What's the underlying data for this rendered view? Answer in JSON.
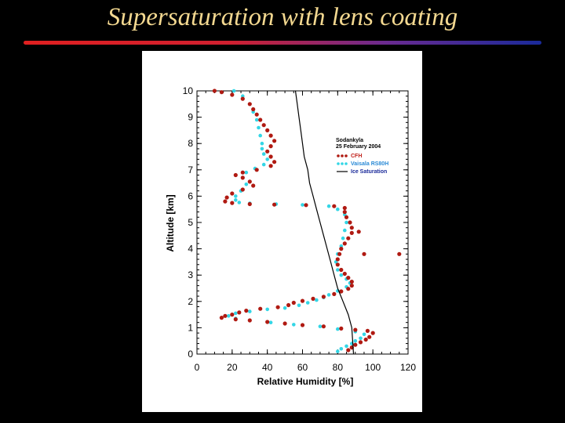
{
  "slide": {
    "title": "Supersaturation with lens coating",
    "accent_colors": [
      "#e02020",
      "#1a2a9a"
    ]
  },
  "chart_data": {
    "type": "scatter",
    "xlabel": "Relative Humidity [%]",
    "ylabel": "Altitude [km]",
    "xlim": [
      0,
      120
    ],
    "ylim": [
      0,
      10
    ],
    "xticks": [
      0,
      20,
      40,
      60,
      80,
      100,
      120
    ],
    "yticks": [
      0,
      1,
      2,
      3,
      4,
      5,
      6,
      7,
      8,
      9,
      10
    ],
    "annotation": {
      "line1": "Sodankyla",
      "line2": "25 February 2004"
    },
    "legend_position": "right-middle",
    "series": [
      {
        "name": "Vaisala RS80H",
        "color": "#33d6e6",
        "points": [
          [
            80,
            0.1
          ],
          [
            82,
            0.2
          ],
          [
            85,
            0.3
          ],
          [
            88,
            0.4
          ],
          [
            90,
            0.5
          ],
          [
            93,
            0.6
          ],
          [
            95,
            0.75
          ],
          [
            90,
            0.85
          ],
          [
            80,
            0.95
          ],
          [
            70,
            1.05
          ],
          [
            55,
            1.12
          ],
          [
            42,
            1.2
          ],
          [
            30,
            1.28
          ],
          [
            22,
            1.35
          ],
          [
            18,
            1.45
          ],
          [
            22,
            1.55
          ],
          [
            30,
            1.62
          ],
          [
            40,
            1.7
          ],
          [
            50,
            1.75
          ],
          [
            58,
            1.85
          ],
          [
            63,
            1.95
          ],
          [
            68,
            2.05
          ],
          [
            72,
            2.15
          ],
          [
            75,
            2.25
          ],
          [
            80,
            2.4
          ],
          [
            85,
            2.55
          ],
          [
            87,
            2.7
          ],
          [
            85,
            2.85
          ],
          [
            82,
            3.0
          ],
          [
            80,
            3.2
          ],
          [
            79,
            3.5
          ],
          [
            80,
            3.8
          ],
          [
            82,
            4.1
          ],
          [
            83,
            4.4
          ],
          [
            84,
            4.7
          ],
          [
            85,
            5.0
          ],
          [
            84,
            5.3
          ],
          [
            80,
            5.5
          ],
          [
            75,
            5.62
          ],
          [
            60,
            5.67
          ],
          [
            45,
            5.7
          ],
          [
            30,
            5.73
          ],
          [
            24,
            5.76
          ],
          [
            22,
            5.85
          ],
          [
            22,
            6.0
          ],
          [
            25,
            6.2
          ],
          [
            28,
            6.45
          ],
          [
            26,
            6.7
          ],
          [
            28,
            6.9
          ],
          [
            33,
            7.05
          ],
          [
            38,
            7.2
          ],
          [
            40,
            7.4
          ],
          [
            38,
            7.6
          ],
          [
            37,
            7.8
          ],
          [
            37,
            8.0
          ],
          [
            36,
            8.3
          ],
          [
            35,
            8.6
          ],
          [
            34,
            8.9
          ],
          [
            32,
            9.2
          ],
          [
            30,
            9.5
          ],
          [
            26,
            9.8
          ],
          [
            21,
            10.0
          ]
        ]
      },
      {
        "name": "CFH",
        "color": "#b01a12",
        "points": [
          [
            86,
            0.15
          ],
          [
            88,
            0.25
          ],
          [
            90,
            0.35
          ],
          [
            93,
            0.45
          ],
          [
            96,
            0.55
          ],
          [
            98,
            0.65
          ],
          [
            100,
            0.8
          ],
          [
            97,
            0.88
          ],
          [
            90,
            0.92
          ],
          [
            82,
            0.97
          ],
          [
            72,
            1.05
          ],
          [
            60,
            1.1
          ],
          [
            50,
            1.16
          ],
          [
            40,
            1.22
          ],
          [
            30,
            1.28
          ],
          [
            22,
            1.32
          ],
          [
            14,
            1.38
          ],
          [
            16,
            1.45
          ],
          [
            20,
            1.5
          ],
          [
            24,
            1.58
          ],
          [
            28,
            1.65
          ],
          [
            36,
            1.72
          ],
          [
            46,
            1.78
          ],
          [
            52,
            1.86
          ],
          [
            55,
            1.95
          ],
          [
            60,
            2.02
          ],
          [
            66,
            2.1
          ],
          [
            72,
            2.18
          ],
          [
            78,
            2.28
          ],
          [
            82,
            2.38
          ],
          [
            86,
            2.48
          ],
          [
            88,
            2.6
          ],
          [
            88,
            2.75
          ],
          [
            86,
            2.9
          ],
          [
            84,
            3.05
          ],
          [
            82,
            3.2
          ],
          [
            80,
            3.4
          ],
          [
            80,
            3.6
          ],
          [
            81,
            3.8
          ],
          [
            82,
            4.0
          ],
          [
            84,
            4.2
          ],
          [
            86,
            4.4
          ],
          [
            88,
            4.6
          ],
          [
            88,
            4.8
          ],
          [
            87,
            5.0
          ],
          [
            85,
            5.2
          ],
          [
            84,
            5.4
          ],
          [
            84,
            5.55
          ],
          [
            78,
            5.62
          ],
          [
            62,
            5.66
          ],
          [
            44,
            5.68
          ],
          [
            30,
            5.7
          ],
          [
            20,
            5.74
          ],
          [
            16,
            5.8
          ],
          [
            17,
            5.95
          ],
          [
            20,
            6.1
          ],
          [
            26,
            6.25
          ],
          [
            32,
            6.4
          ],
          [
            30,
            6.55
          ],
          [
            26,
            6.7
          ],
          [
            22,
            6.8
          ],
          [
            26,
            6.9
          ],
          [
            34,
            7.0
          ],
          [
            42,
            7.15
          ],
          [
            44,
            7.3
          ],
          [
            42,
            7.5
          ],
          [
            40,
            7.7
          ],
          [
            42,
            7.9
          ],
          [
            44,
            8.1
          ],
          [
            42,
            8.3
          ],
          [
            40,
            8.5
          ],
          [
            38,
            8.7
          ],
          [
            36,
            8.9
          ],
          [
            34,
            9.1
          ],
          [
            32,
            9.3
          ],
          [
            30,
            9.5
          ],
          [
            26,
            9.7
          ],
          [
            20,
            9.85
          ],
          [
            14,
            9.95
          ],
          [
            10,
            10.0
          ],
          [
            115,
            3.8
          ],
          [
            95,
            3.8
          ],
          [
            92,
            4.65
          ]
        ]
      },
      {
        "name": "Ice Saturation",
        "color": "#000000",
        "points": [
          [
            89,
            0.0
          ],
          [
            88.5,
            0.5
          ],
          [
            88,
            1.0
          ],
          [
            86,
            1.5
          ],
          [
            83,
            2.0
          ],
          [
            80,
            2.5
          ],
          [
            78,
            3.0
          ],
          [
            76,
            3.5
          ],
          [
            74,
            4.0
          ],
          [
            72,
            4.5
          ],
          [
            70,
            5.0
          ],
          [
            68,
            5.5
          ],
          [
            66,
            6.0
          ],
          [
            64,
            6.5
          ],
          [
            63,
            7.0
          ],
          [
            61,
            7.5
          ],
          [
            60,
            8.0
          ],
          [
            59,
            8.5
          ],
          [
            58,
            9.0
          ],
          [
            57,
            9.5
          ],
          [
            56,
            10.0
          ]
        ]
      }
    ]
  }
}
